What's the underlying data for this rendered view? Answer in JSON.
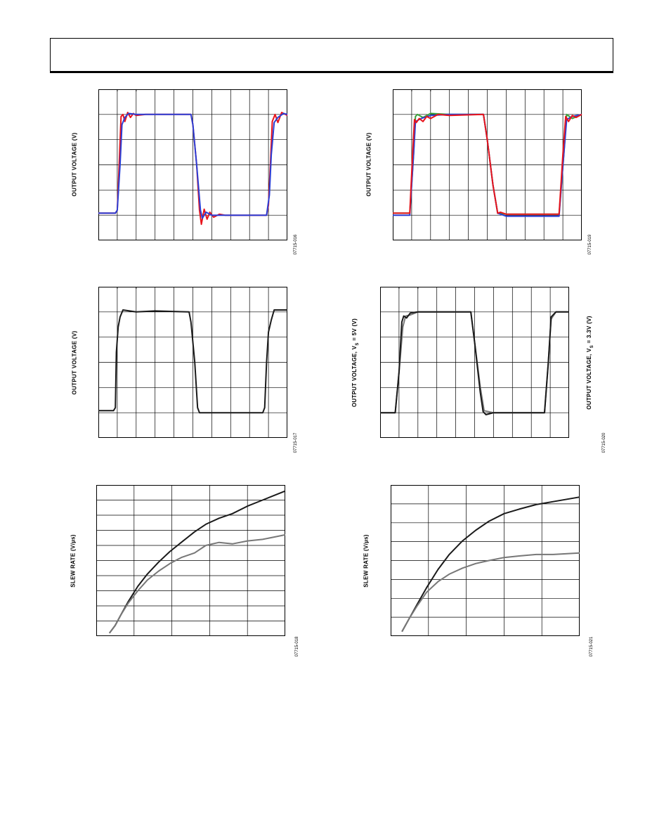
{
  "page": {
    "header_title": ""
  },
  "charts": [
    {
      "id": "c1",
      "ylabel": "OUTPUT VOLTAGE (V)",
      "code": "07715-016"
    },
    {
      "id": "c2",
      "ylabel": "OUTPUT VOLTAGE (V)",
      "code": "07715-019"
    },
    {
      "id": "c3",
      "ylabel": "OUTPUT VOLTAGE (V)",
      "code": "07715-017"
    },
    {
      "id": "c4",
      "ylabel_left_main": "OUTPUT VOLTAGE, V",
      "ylabel_left_sub": "S",
      "ylabel_left_tail": " = 5V (V)",
      "ylabel_right_main": "OUTPUT VOLTAGE, V",
      "ylabel_right_sub": "S",
      "ylabel_right_tail": " = 3.3V (V)",
      "code": "07715-020"
    },
    {
      "id": "c5",
      "ylabel": "SLEW RATE (V/µs)",
      "code": "07715-018"
    },
    {
      "id": "c6",
      "ylabel": "SLEW RATE (V/µs)",
      "code": "07715-021"
    }
  ],
  "chart_data": [
    {
      "type": "line",
      "grid": true,
      "colors": [
        "#e8141c",
        "#2b3fd6",
        "#3aa13a"
      ],
      "series": [
        {
          "color": "#e8141c",
          "values": [
            [
              0,
              0.02
            ],
            [
              0.09,
              0.02
            ],
            [
              0.1,
              0.05
            ],
            [
              0.11,
              0.5
            ],
            [
              0.12,
              0.98
            ],
            [
              0.13,
              1.0
            ],
            [
              0.14,
              0.93
            ],
            [
              0.155,
              1.02
            ],
            [
              0.17,
              0.97
            ],
            [
              0.185,
              1.01
            ],
            [
              0.2,
              0.99
            ],
            [
              0.25,
              1.0
            ],
            [
              0.49,
              1.0
            ],
            [
              0.5,
              0.9
            ],
            [
              0.52,
              0.5
            ],
            [
              0.535,
              0.05
            ],
            [
              0.545,
              -0.09
            ],
            [
              0.56,
              0.06
            ],
            [
              0.575,
              -0.04
            ],
            [
              0.59,
              0.03
            ],
            [
              0.61,
              -0.02
            ],
            [
              0.64,
              0.01
            ],
            [
              0.67,
              0.0
            ],
            [
              0.89,
              0.0
            ],
            [
              0.9,
              0.1
            ],
            [
              0.91,
              0.5
            ],
            [
              0.92,
              0.93
            ],
            [
              0.935,
              1.0
            ],
            [
              0.95,
              0.92
            ],
            [
              0.97,
              1.02
            ],
            [
              1.0,
              0.99
            ]
          ]
        },
        {
          "color": "#2b3fd6",
          "values": [
            [
              0,
              0.02
            ],
            [
              0.09,
              0.02
            ],
            [
              0.1,
              0.05
            ],
            [
              0.115,
              0.5
            ],
            [
              0.125,
              0.9
            ],
            [
              0.14,
              0.97
            ],
            [
              0.16,
              1.01
            ],
            [
              0.2,
              1.0
            ],
            [
              0.49,
              1.0
            ],
            [
              0.5,
              0.9
            ],
            [
              0.52,
              0.5
            ],
            [
              0.54,
              0.05
            ],
            [
              0.55,
              -0.03
            ],
            [
              0.57,
              0.03
            ],
            [
              0.6,
              0.0
            ],
            [
              0.89,
              0.0
            ],
            [
              0.905,
              0.2
            ],
            [
              0.915,
              0.6
            ],
            [
              0.93,
              0.92
            ],
            [
              0.95,
              0.97
            ],
            [
              0.98,
              1.01
            ],
            [
              1.0,
              1.0
            ]
          ]
        }
      ]
    },
    {
      "type": "line",
      "grid": true,
      "colors": [
        "#e8141c",
        "#2b3fd6",
        "#3aa13a"
      ],
      "series": [
        {
          "color": "#3aa13a",
          "values": [
            [
              0,
              0.02
            ],
            [
              0.09,
              0.02
            ],
            [
              0.11,
              0.6
            ],
            [
              0.12,
              0.98
            ],
            [
              0.13,
              1.0
            ],
            [
              0.16,
              0.97
            ],
            [
              0.2,
              1.01
            ],
            [
              0.3,
              1.0
            ],
            [
              0.48,
              1.0
            ],
            [
              0.5,
              0.75
            ],
            [
              0.53,
              0.3
            ],
            [
              0.555,
              0.02
            ],
            [
              0.6,
              0.01
            ],
            [
              0.88,
              0.01
            ],
            [
              0.905,
              0.6
            ],
            [
              0.92,
              1.0
            ],
            [
              0.95,
              0.96
            ],
            [
              1.0,
              1.0
            ]
          ]
        },
        {
          "color": "#2b3fd6",
          "values": [
            [
              0,
              0.0
            ],
            [
              0.09,
              0.0
            ],
            [
              0.11,
              0.6
            ],
            [
              0.12,
              0.93
            ],
            [
              0.15,
              0.96
            ],
            [
              0.2,
              0.99
            ],
            [
              0.3,
              1.0
            ],
            [
              0.48,
              1.0
            ],
            [
              0.5,
              0.75
            ],
            [
              0.53,
              0.3
            ],
            [
              0.555,
              0.02
            ],
            [
              0.6,
              -0.01
            ],
            [
              0.88,
              -0.01
            ],
            [
              0.905,
              0.6
            ],
            [
              0.92,
              0.95
            ],
            [
              0.95,
              0.98
            ],
            [
              1.0,
              1.0
            ]
          ]
        },
        {
          "color": "#e8141c",
          "values": [
            [
              0,
              0.02
            ],
            [
              0.09,
              0.02
            ],
            [
              0.105,
              0.6
            ],
            [
              0.115,
              0.95
            ],
            [
              0.125,
              0.92
            ],
            [
              0.14,
              0.96
            ],
            [
              0.16,
              0.93
            ],
            [
              0.18,
              0.98
            ],
            [
              0.2,
              0.96
            ],
            [
              0.24,
              1.0
            ],
            [
              0.3,
              0.99
            ],
            [
              0.48,
              1.0
            ],
            [
              0.5,
              0.75
            ],
            [
              0.53,
              0.3
            ],
            [
              0.555,
              0.02
            ],
            [
              0.57,
              0.03
            ],
            [
              0.6,
              0.01
            ],
            [
              0.88,
              0.01
            ],
            [
              0.9,
              0.6
            ],
            [
              0.915,
              0.98
            ],
            [
              0.93,
              0.93
            ],
            [
              0.95,
              0.99
            ],
            [
              0.97,
              0.97
            ],
            [
              1.0,
              1.0
            ]
          ]
        }
      ]
    },
    {
      "type": "line",
      "grid": true,
      "colors": [
        "#1a1a1a"
      ],
      "series": [
        {
          "color": "#1a1a1a",
          "values": [
            [
              0,
              0.02
            ],
            [
              0.08,
              0.02
            ],
            [
              0.09,
              0.05
            ],
            [
              0.095,
              0.6
            ],
            [
              0.105,
              0.85
            ],
            [
              0.115,
              0.95
            ],
            [
              0.13,
              1.02
            ],
            [
              0.2,
              1.0
            ],
            [
              0.3,
              1.01
            ],
            [
              0.48,
              1.0
            ],
            [
              0.49,
              0.9
            ],
            [
              0.51,
              0.5
            ],
            [
              0.525,
              0.05
            ],
            [
              0.535,
              0.0
            ],
            [
              0.6,
              0.0
            ],
            [
              0.87,
              0.0
            ],
            [
              0.88,
              0.05
            ],
            [
              0.89,
              0.5
            ],
            [
              0.9,
              0.8
            ],
            [
              0.915,
              0.92
            ],
            [
              0.93,
              1.02
            ],
            [
              1.0,
              1.02
            ]
          ]
        }
      ]
    },
    {
      "type": "line",
      "grid": true,
      "colors": [
        "#1a1a1a",
        "#777777"
      ],
      "series": [
        {
          "color": "#777777",
          "values": [
            [
              0,
              0.0
            ],
            [
              0.08,
              0.0
            ],
            [
              0.1,
              0.4
            ],
            [
              0.12,
              0.85
            ],
            [
              0.135,
              0.96
            ],
            [
              0.16,
              0.97
            ],
            [
              0.2,
              1.0
            ],
            [
              0.48,
              1.0
            ],
            [
              0.5,
              0.7
            ],
            [
              0.53,
              0.25
            ],
            [
              0.55,
              0.02
            ],
            [
              0.6,
              0.0
            ],
            [
              0.87,
              0.0
            ],
            [
              0.89,
              0.5
            ],
            [
              0.905,
              0.93
            ],
            [
              0.93,
              1.0
            ],
            [
              1.0,
              1.0
            ]
          ]
        },
        {
          "color": "#1a1a1a",
          "values": [
            [
              0,
              0.0
            ],
            [
              0.08,
              0.0
            ],
            [
              0.1,
              0.4
            ],
            [
              0.115,
              0.9
            ],
            [
              0.125,
              0.96
            ],
            [
              0.14,
              0.94
            ],
            [
              0.16,
              0.99
            ],
            [
              0.2,
              1.0
            ],
            [
              0.48,
              1.0
            ],
            [
              0.5,
              0.7
            ],
            [
              0.53,
              0.2
            ],
            [
              0.545,
              0.01
            ],
            [
              0.56,
              -0.02
            ],
            [
              0.6,
              0.0
            ],
            [
              0.87,
              0.0
            ],
            [
              0.89,
              0.5
            ],
            [
              0.905,
              0.95
            ],
            [
              0.93,
              1.0
            ],
            [
              1.0,
              1.0
            ]
          ]
        }
      ]
    },
    {
      "type": "line",
      "grid": true,
      "colors": [
        "#1a1a1a",
        "#777777"
      ],
      "series": [
        {
          "color": "#1a1a1a",
          "values": [
            [
              0.07,
              0.02
            ],
            [
              0.1,
              0.07
            ],
            [
              0.13,
              0.14
            ],
            [
              0.17,
              0.23
            ],
            [
              0.22,
              0.33
            ],
            [
              0.27,
              0.41
            ],
            [
              0.33,
              0.49
            ],
            [
              0.39,
              0.56
            ],
            [
              0.45,
              0.62
            ],
            [
              0.52,
              0.69
            ],
            [
              0.58,
              0.74
            ],
            [
              0.65,
              0.78
            ],
            [
              0.72,
              0.81
            ],
            [
              0.8,
              0.86
            ],
            [
              0.88,
              0.9
            ],
            [
              1.0,
              0.96
            ]
          ]
        },
        {
          "color": "#777777",
          "values": [
            [
              0.07,
              0.02
            ],
            [
              0.1,
              0.07
            ],
            [
              0.13,
              0.14
            ],
            [
              0.17,
              0.22
            ],
            [
              0.22,
              0.3
            ],
            [
              0.27,
              0.37
            ],
            [
              0.33,
              0.43
            ],
            [
              0.39,
              0.48
            ],
            [
              0.45,
              0.52
            ],
            [
              0.52,
              0.55
            ],
            [
              0.58,
              0.6
            ],
            [
              0.65,
              0.62
            ],
            [
              0.72,
              0.61
            ],
            [
              0.8,
              0.63
            ],
            [
              0.88,
              0.64
            ],
            [
              1.0,
              0.67
            ]
          ]
        }
      ]
    },
    {
      "type": "line",
      "grid": true,
      "colors": [
        "#1a1a1a",
        "#777777"
      ],
      "series": [
        {
          "color": "#1a1a1a",
          "values": [
            [
              0.06,
              0.03
            ],
            [
              0.1,
              0.12
            ],
            [
              0.14,
              0.21
            ],
            [
              0.19,
              0.32
            ],
            [
              0.25,
              0.44
            ],
            [
              0.31,
              0.54
            ],
            [
              0.38,
              0.63
            ],
            [
              0.45,
              0.7
            ],
            [
              0.52,
              0.76
            ],
            [
              0.6,
              0.81
            ],
            [
              0.68,
              0.84
            ],
            [
              0.77,
              0.87
            ],
            [
              0.86,
              0.89
            ],
            [
              1.0,
              0.92
            ]
          ]
        },
        {
          "color": "#777777",
          "values": [
            [
              0.06,
              0.03
            ],
            [
              0.1,
              0.12
            ],
            [
              0.14,
              0.2
            ],
            [
              0.19,
              0.29
            ],
            [
              0.25,
              0.36
            ],
            [
              0.31,
              0.41
            ],
            [
              0.38,
              0.45
            ],
            [
              0.45,
              0.48
            ],
            [
              0.52,
              0.5
            ],
            [
              0.6,
              0.52
            ],
            [
              0.68,
              0.53
            ],
            [
              0.77,
              0.54
            ],
            [
              0.86,
              0.54
            ],
            [
              1.0,
              0.55
            ]
          ]
        }
      ]
    }
  ]
}
